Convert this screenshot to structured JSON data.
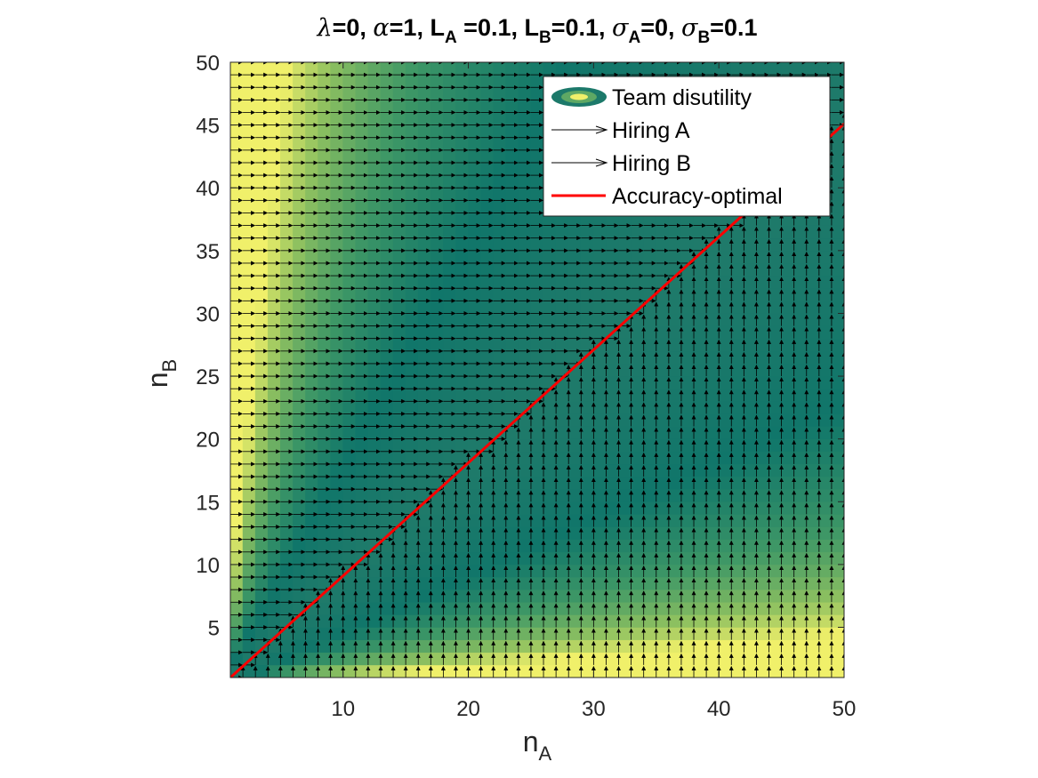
{
  "chart_data": {
    "type": "heatmap",
    "overlay": "quiver",
    "title": {
      "parts": [
        {
          "t": "λ",
          "style": "greek"
        },
        {
          "t": "=0, "
        },
        {
          "t": "α",
          "style": "greek"
        },
        {
          "t": "=1, L"
        },
        {
          "t": "A",
          "style": "sub"
        },
        {
          "t": " =0.1, L"
        },
        {
          "t": "B",
          "style": "sub"
        },
        {
          "t": "=0.1, "
        },
        {
          "t": "σ",
          "style": "greek"
        },
        {
          "t": "A",
          "style": "sub"
        },
        {
          "t": "=0, "
        },
        {
          "t": "σ",
          "style": "greek"
        },
        {
          "t": "B",
          "style": "sub"
        },
        {
          "t": "=0.1"
        }
      ]
    },
    "xlabel": {
      "main": "n",
      "sub": "A"
    },
    "ylabel": {
      "main": "n",
      "sub": "B"
    },
    "xlim": [
      1,
      50
    ],
    "ylim": [
      1,
      50
    ],
    "xticks": [
      10,
      20,
      30,
      40,
      50
    ],
    "yticks": [
      5,
      10,
      15,
      20,
      25,
      30,
      35,
      40,
      45,
      50
    ],
    "grid": false,
    "colormap": [
      "#1f7a6a",
      "#10766a",
      "#3f9866",
      "#8dc060",
      "#f0f06a"
    ],
    "accuracy_optimal_slope": 0.9,
    "legend": {
      "position": "top-right",
      "entries": [
        {
          "label": "Team disutility",
          "kind": "contour"
        },
        {
          "label": "Hiring A",
          "kind": "arrow"
        },
        {
          "label": "Hiring B",
          "kind": "arrow"
        },
        {
          "label": "Accuracy-optimal",
          "kind": "line",
          "color": "#ff0000"
        }
      ]
    },
    "series": [
      {
        "name": "Accuracy-optimal",
        "type": "line",
        "color": "#ff0000",
        "x": [
          1,
          50
        ],
        "y": [
          1,
          45.1
        ]
      }
    ]
  }
}
